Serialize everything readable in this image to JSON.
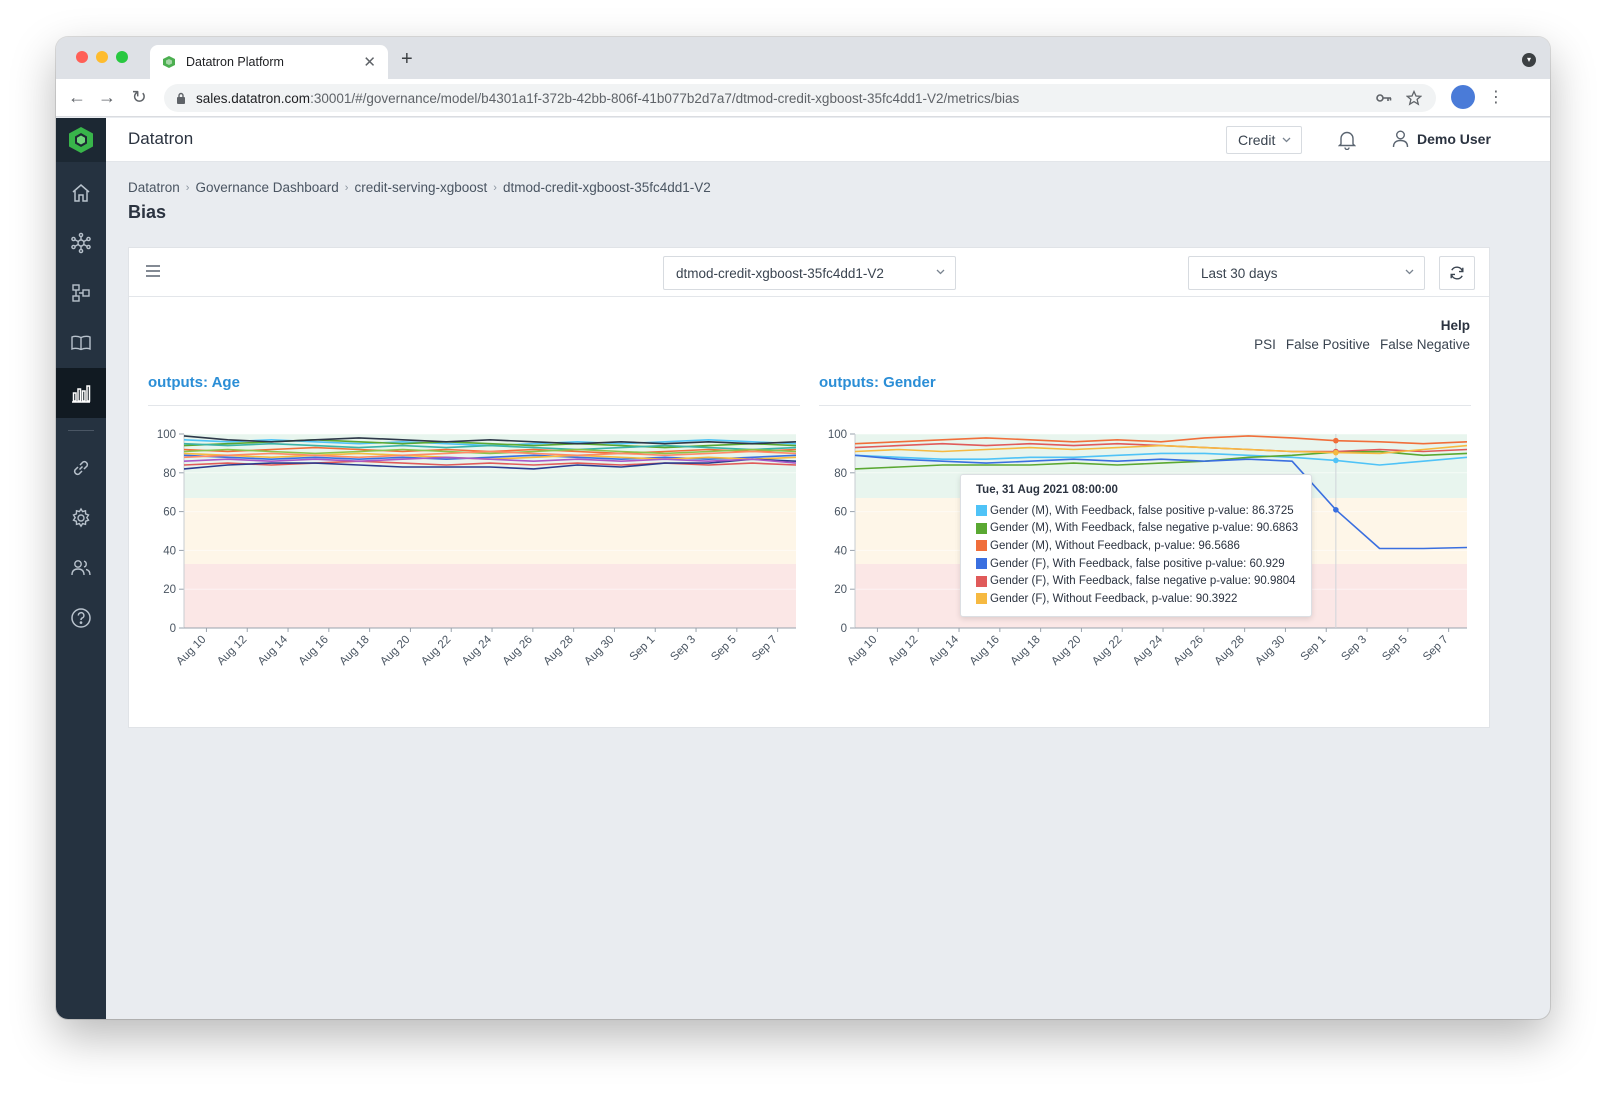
{
  "browser": {
    "tab_title": "Datatron Platform",
    "url_host": "sales.datatron.com",
    "url_rest": ":30001/#/governance/model/b4301a1f-372b-42bb-806f-41b077b2d7a7/dtmod-credit-xgboost-35fc4dd1-V2/metrics/bias",
    "new_tab_label": "+",
    "close_label": "✕"
  },
  "app": {
    "title": "Datatron",
    "credit_select": "Credit",
    "user_name": "Demo User"
  },
  "sidebar_icons": [
    "home-icon",
    "network-icon",
    "models-icon",
    "book-icon",
    "chart-icon",
    "link-icon",
    "gear-icon",
    "users-icon",
    "help-icon"
  ],
  "breadcrumb": {
    "items": [
      "Datatron",
      "Governance Dashboard",
      "credit-serving-xgboost",
      "dtmod-credit-xgboost-35fc4dd1-V2"
    ]
  },
  "page": {
    "title": "Bias"
  },
  "toolbar": {
    "model_select": "dtmod-credit-xgboost-35fc4dd1-V2",
    "range_select": "Last 30 days"
  },
  "help": {
    "title": "Help",
    "links": [
      "PSI",
      "False Positive",
      "False Negative"
    ]
  },
  "chart_data": [
    {
      "type": "line",
      "title": "outputs: Age",
      "x": [
        "Aug 10",
        "Aug 12",
        "Aug 14",
        "Aug 16",
        "Aug 18",
        "Aug 20",
        "Aug 22",
        "Aug 24",
        "Aug 26",
        "Aug 28",
        "Aug 30",
        "Sep 1",
        "Sep 3",
        "Sep 5",
        "Sep 7"
      ],
      "ylim": [
        0,
        100
      ],
      "yticks": [
        0,
        20,
        40,
        60,
        80,
        100
      ],
      "bands": [
        {
          "from": 0,
          "to": 33,
          "color": "#fbe7e6"
        },
        {
          "from": 33,
          "to": 67,
          "color": "#fef6e8"
        },
        {
          "from": 67,
          "to": 100,
          "color": "#e8f5ee"
        }
      ],
      "series": [
        {
          "color": "#4fc3f7",
          "values": [
            97,
            96,
            97,
            96,
            95,
            96,
            95,
            94,
            95,
            96,
            95,
            96,
            97,
            96,
            95
          ]
        },
        {
          "color": "#5aa832",
          "values": [
            94,
            95,
            96,
            97,
            96,
            95,
            96,
            95,
            94,
            95,
            94,
            93,
            94,
            95,
            94
          ]
        },
        {
          "color": "#f06e3a",
          "values": [
            92,
            91,
            92,
            93,
            92,
            91,
            92,
            91,
            92,
            91,
            90,
            91,
            92,
            91,
            92
          ]
        },
        {
          "color": "#3a6fe0",
          "values": [
            89,
            88,
            87,
            88,
            87,
            88,
            87,
            88,
            89,
            88,
            87,
            88,
            87,
            88,
            89
          ]
        },
        {
          "color": "#e05a5a",
          "values": [
            84,
            85,
            84,
            85,
            86,
            85,
            84,
            85,
            84,
            85,
            84,
            85,
            84,
            85,
            84
          ]
        },
        {
          "color": "#f6b941",
          "values": [
            90,
            89,
            88,
            89,
            90,
            89,
            88,
            87,
            88,
            89,
            88,
            87,
            88,
            87,
            88
          ]
        },
        {
          "color": "#2b3a8f",
          "values": [
            82,
            84,
            85,
            85,
            84,
            83,
            83,
            83,
            82,
            84,
            83,
            85,
            85,
            87,
            86
          ]
        },
        {
          "color": "#a858c7",
          "values": [
            86,
            87,
            86,
            87,
            86,
            87,
            88,
            87,
            86,
            87,
            86,
            87,
            86,
            87,
            85
          ]
        },
        {
          "color": "#3bb3a8",
          "values": [
            95,
            94,
            95,
            94,
            93,
            94,
            93,
            94,
            93,
            92,
            93,
            94,
            93,
            92,
            93
          ]
        },
        {
          "color": "#2d3748",
          "values": [
            99,
            97,
            96,
            97,
            98,
            97,
            96,
            97,
            96,
            95,
            96,
            95,
            96,
            95,
            96
          ]
        },
        {
          "color": "#8bc34a",
          "values": [
            91,
            92,
            91,
            90,
            91,
            92,
            91,
            90,
            91,
            92,
            91,
            90,
            91,
            92,
            91
          ]
        },
        {
          "color": "#ff8a65",
          "values": [
            88,
            89,
            90,
            89,
            88,
            89,
            90,
            91,
            90,
            89,
            90,
            89,
            90,
            91,
            90
          ]
        }
      ]
    },
    {
      "type": "line",
      "title": "outputs: Gender",
      "x": [
        "Aug 10",
        "Aug 12",
        "Aug 14",
        "Aug 16",
        "Aug 18",
        "Aug 20",
        "Aug 22",
        "Aug 24",
        "Aug 26",
        "Aug 28",
        "Aug 30",
        "Sep 1",
        "Sep 3",
        "Sep 5",
        "Sep 7"
      ],
      "ylim": [
        0,
        100
      ],
      "yticks": [
        0,
        20,
        40,
        60,
        80,
        100
      ],
      "bands": [
        {
          "from": 0,
          "to": 33,
          "color": "#fbe7e6"
        },
        {
          "from": 33,
          "to": 67,
          "color": "#fef6e8"
        },
        {
          "from": 67,
          "to": 100,
          "color": "#e8f5ee"
        }
      ],
      "series": [
        {
          "name": "Gender (M), With Feedback, false positive p-value",
          "color": "#4fc3f7",
          "values": [
            89,
            88,
            87,
            87,
            88,
            88,
            89,
            90,
            90,
            89,
            88,
            86.3725,
            84,
            86,
            88
          ]
        },
        {
          "name": "Gender (M), With Feedback, false negative p-value",
          "color": "#5aa832",
          "values": [
            82,
            83,
            84,
            84,
            84,
            85,
            84,
            85,
            86,
            88,
            89,
            90.6863,
            91,
            89,
            90
          ]
        },
        {
          "name": "Gender (M), Without Feedback, p-value",
          "color": "#f06e3a",
          "values": [
            95,
            96,
            97,
            98,
            97,
            96,
            97,
            96,
            98,
            99,
            98,
            96.5686,
            96,
            95,
            96
          ]
        },
        {
          "name": "Gender (F), With Feedback, false positive p-value",
          "color": "#3a6fe0",
          "values": [
            89,
            87,
            86,
            85,
            86,
            87,
            86,
            87,
            86,
            87,
            86,
            60.929,
            41,
            41,
            41.5
          ]
        },
        {
          "name": "Gender (F), With Feedback, false negative p-value",
          "color": "#e05a5a",
          "values": [
            93,
            94,
            95,
            94,
            95,
            94,
            95,
            94,
            93,
            92,
            91,
            90.9804,
            92,
            91,
            92
          ]
        },
        {
          "name": "Gender (F), Without Feedback, p-value",
          "color": "#f6b941",
          "values": [
            91,
            92,
            91,
            92,
            93,
            92,
            93,
            94,
            93,
            92,
            91,
            90.3922,
            90,
            92,
            94
          ]
        }
      ],
      "tooltip": {
        "title": "Tue, 31 Aug 2021 08:00:00",
        "rows": [
          "Gender (M), With Feedback, false positive p-value: 86.3725",
          "Gender (M), With Feedback, false negative p-value: 90.6863",
          "Gender (M), Without Feedback, p-value: 96.5686",
          "Gender (F), With Feedback, false positive p-value: 60.929",
          "Gender (F), With Feedback, false negative p-value: 90.9804",
          "Gender (F), Without Feedback, p-value: 90.3922"
        ]
      }
    }
  ]
}
